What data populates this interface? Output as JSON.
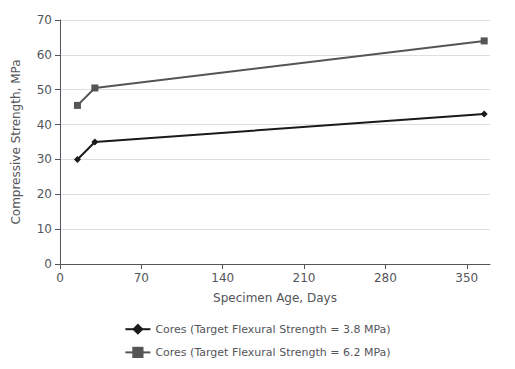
{
  "chart_data": {
    "type": "line",
    "x": [
      15,
      30,
      365
    ],
    "series": [
      {
        "name": "Cores (Target Flexural Strength = 3.8 MPa)",
        "color": "#1a1a1a",
        "marker": "diamond",
        "values": [
          30,
          35,
          43
        ]
      },
      {
        "name": "Cores (Target Flexural Strength = 6.2 MPa)",
        "color": "#555555",
        "marker": "square",
        "values": [
          45.5,
          50.5,
          64
        ]
      }
    ],
    "xlabel": "Specimen Age, Days",
    "ylabel": "Compressive Strength, MPa",
    "xlim": [
      0,
      370
    ],
    "ylim": [
      0,
      70
    ],
    "xticks": [
      0,
      70,
      140,
      210,
      280,
      350
    ],
    "yticks": [
      0,
      10,
      20,
      30,
      40,
      50,
      60,
      70
    ],
    "grid": true,
    "legend": "bottom"
  }
}
